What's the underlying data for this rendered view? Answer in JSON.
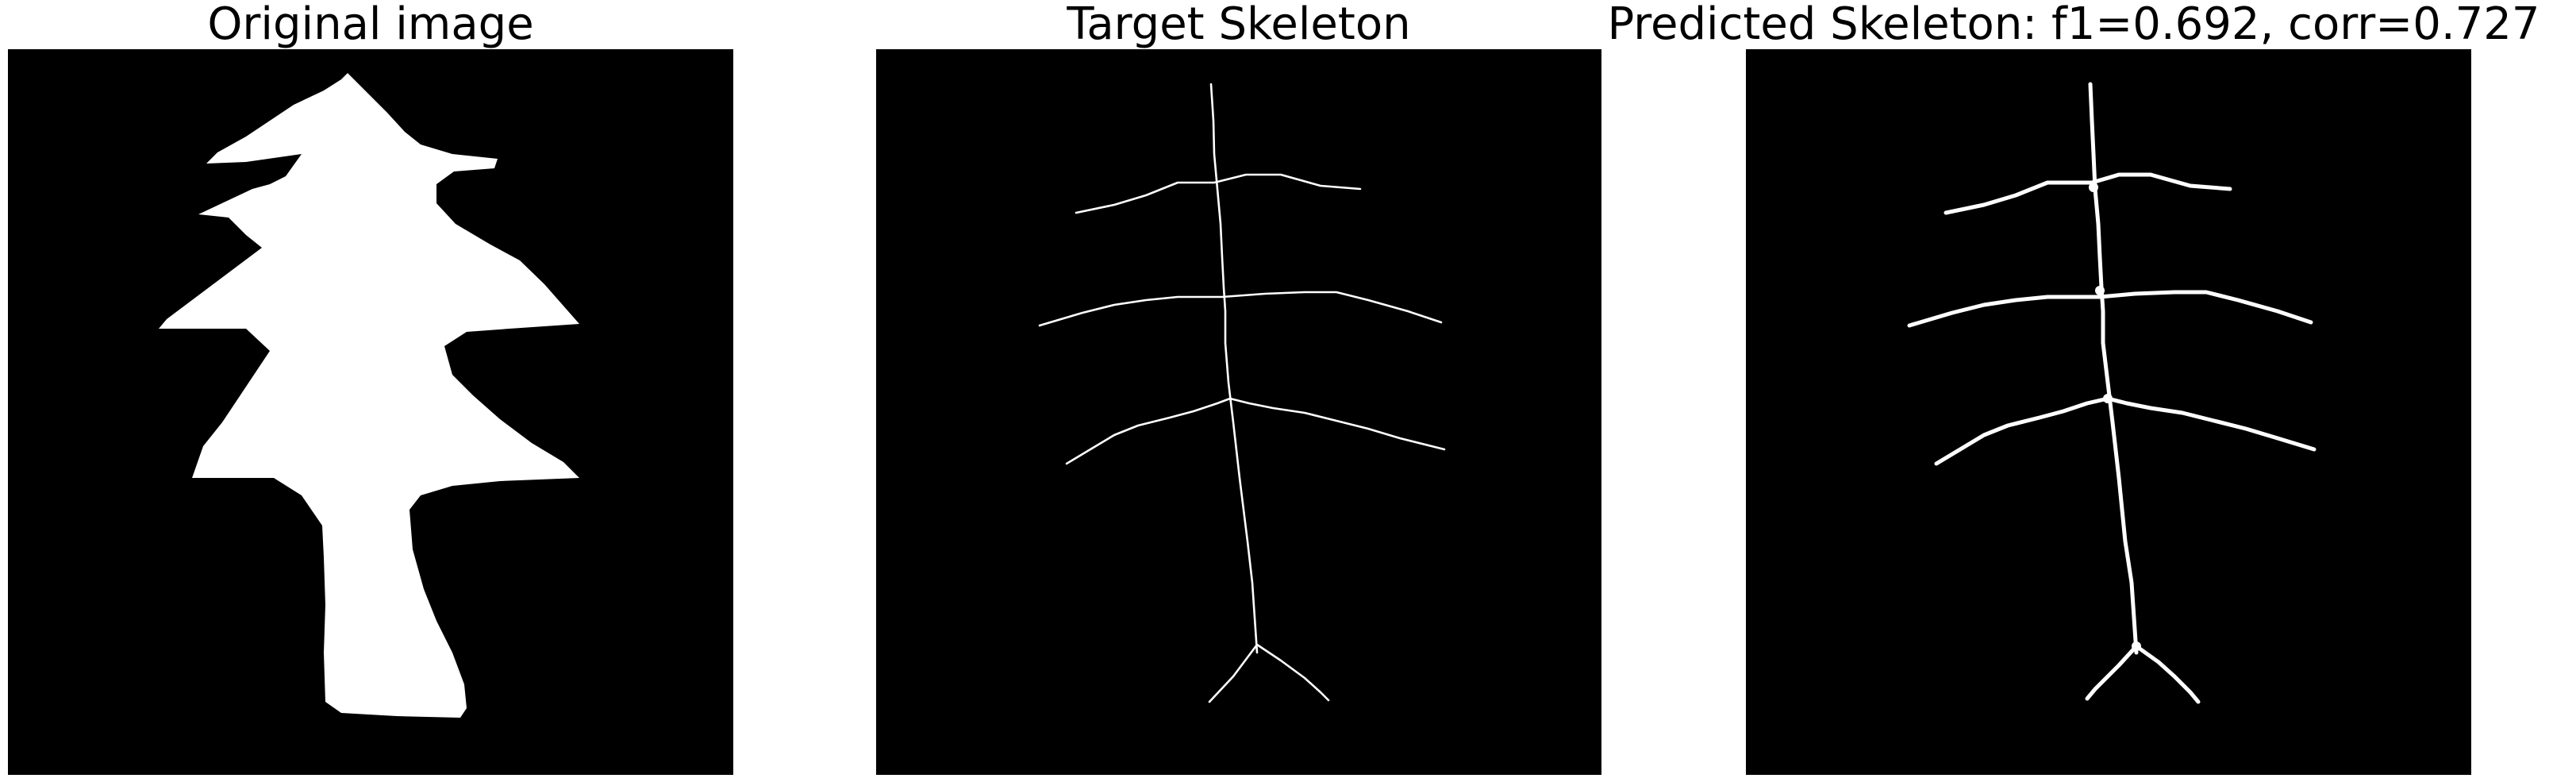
{
  "panels": {
    "original": {
      "title": "Original image"
    },
    "target": {
      "title": "Target Skeleton"
    },
    "predicted": {
      "title": "Predicted Skeleton: f1=0.692, corr=0.727"
    }
  },
  "colors": {
    "background": "#000000",
    "foreground": "#ffffff",
    "page": "#ffffff"
  }
}
